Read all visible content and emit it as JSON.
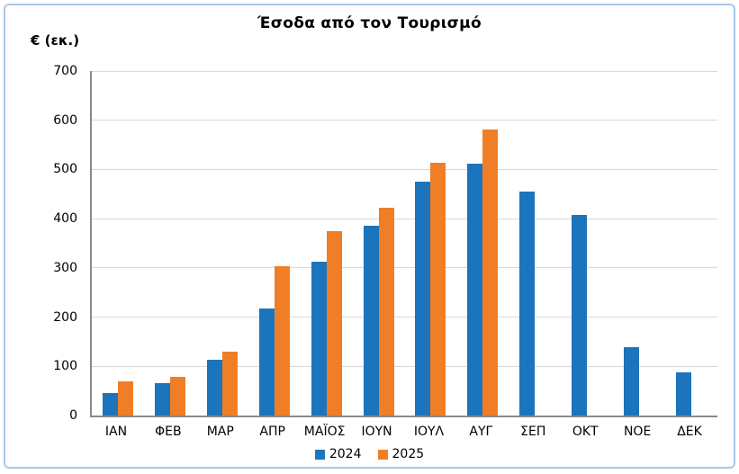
{
  "chart_data": {
    "type": "bar",
    "title": "Έσοδα από τον Τουρισμό",
    "ylabel": "€ (εκ.)",
    "xlabel": "",
    "categories": [
      "ΙΑΝ",
      "ΦΕΒ",
      "ΜΑΡ",
      "ΑΠΡ",
      "ΜΑΪΟΣ",
      "ΙΟΥΝ",
      "ΙΟΥΛ",
      "ΑΥΓ",
      "ΣΕΠ",
      "ΟΚΤ",
      "ΝΟΕ",
      "ΔΕΚ"
    ],
    "series": [
      {
        "name": "2024",
        "color": "#1b74bc",
        "values": [
          45,
          65,
          113,
          218,
          312,
          386,
          475,
          511,
          455,
          407,
          139,
          87
        ]
      },
      {
        "name": "2025",
        "color": "#f07e26",
        "values": [
          69,
          79,
          129,
          304,
          375,
          422,
          513,
          581,
          null,
          null,
          null,
          null
        ]
      }
    ],
    "ylim": [
      0,
      700
    ],
    "yticks": [
      0,
      100,
      200,
      300,
      400,
      500,
      600,
      700
    ],
    "grid": "horizontal",
    "legend_position": "bottom"
  },
  "style": {
    "gridline_color": "#d9d9d9",
    "axis_color": "#898989",
    "frame_border_color": "#aac8e8"
  }
}
